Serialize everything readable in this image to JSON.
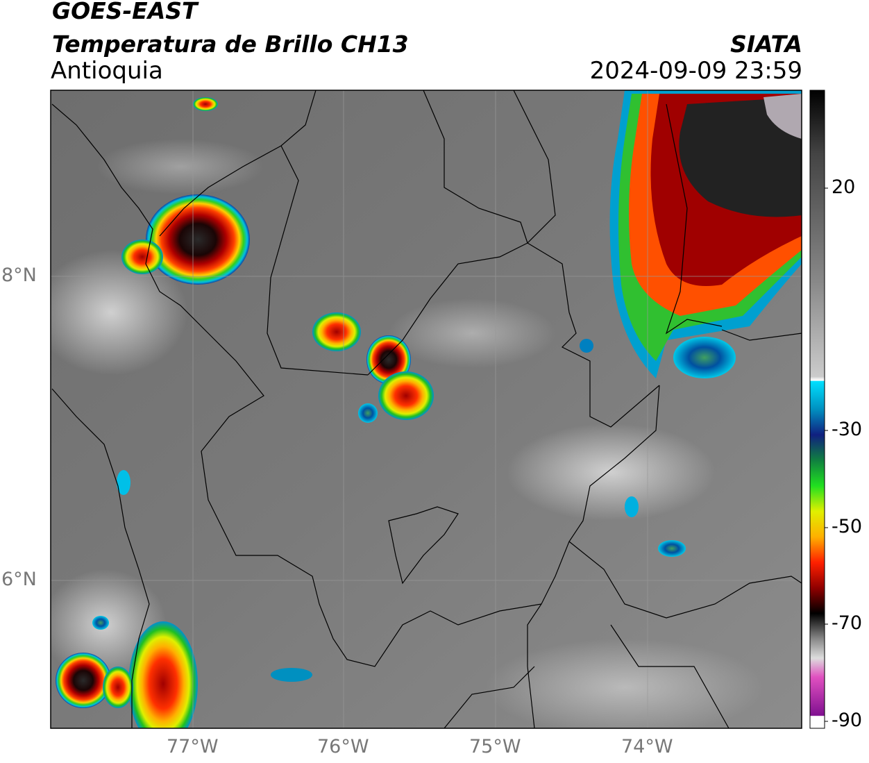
{
  "header": {
    "title": "GOES-EAST",
    "subtitle": "Temperatura de Brillo CH13",
    "region": "Antioquia",
    "source": "SIATA",
    "datetime": "2024-09-09 23:59"
  },
  "map": {
    "x_labels": [
      "77°W",
      "76°W",
      "75°W",
      "74°W"
    ],
    "y_labels": [
      "8°N",
      "6°N"
    ]
  },
  "colorbar": {
    "labels": [
      "20",
      "-30",
      "-50",
      "-70",
      "-90"
    ]
  }
}
